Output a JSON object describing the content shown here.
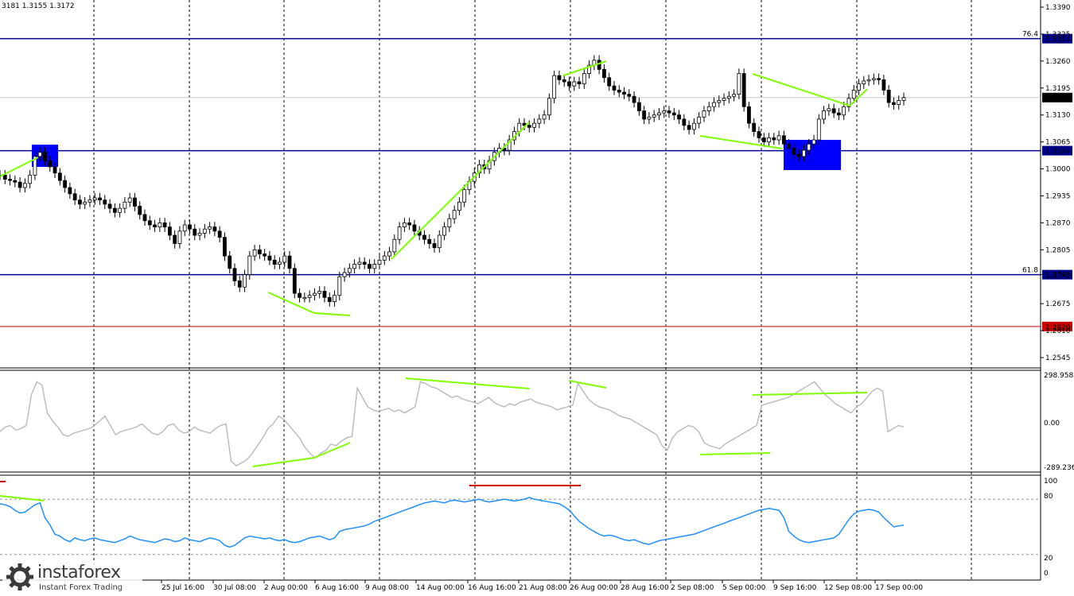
{
  "header": {
    "ohlc_text": "3181 1.3155 1.3172"
  },
  "price_axis": {
    "ticks": [
      "1.3390",
      "1.3325",
      "1.3260",
      "1.3195",
      "1.3130",
      "1.3065",
      "1.3000",
      "1.2935",
      "1.2870",
      "1.2805",
      "1.2745",
      "1.2675",
      "1.2610",
      "1.2545"
    ]
  },
  "time_axis": {
    "labels": [
      "25 Jul 16:00",
      "30 Jul 08:00",
      "2 Aug 00:00",
      "6 Aug 16:00",
      "9 Aug 08:00",
      "14 Aug 00:00",
      "16 Aug 16:00",
      "21 Aug 08:00",
      "26 Aug 00:00",
      "28 Aug 16:00",
      "2 Sep 08:00",
      "5 Sep 00:00",
      "9 Sep 16:00",
      "12 Sep 08:00",
      "17 Sep 00:00"
    ]
  },
  "levels": [
    {
      "fib_label": "76.4",
      "price_label": "1.3314",
      "color": "#00008b"
    },
    {
      "fib_label": "",
      "price_label": "1.3044",
      "color": "#00008b"
    },
    {
      "fib_label": "61.8",
      "price_label": "1.2745",
      "color": "#00008b"
    },
    {
      "fib_label": "",
      "price_label": "1.2620",
      "color": "#cc0000"
    }
  ],
  "current_price": "1.3172",
  "cci_panel": {
    "ticks": [
      "298.9583",
      "0.00",
      "-289.236"
    ]
  },
  "rsi_panel": {
    "ticks": [
      "100",
      "80",
      "20",
      "0"
    ]
  },
  "logo": {
    "name": "instaforex",
    "tagline": "Instant Forex Trading"
  },
  "colors": {
    "divergence": "#7fff00",
    "rsi_line": "#1e90ff",
    "cci_line": "#bdbdbd",
    "zone": "#0000ff",
    "level_blue": "#00008b",
    "level_red": "#cc0000"
  },
  "chart_data": [
    {
      "type": "candlestick",
      "series": [
        {
          "name": "",
          "values": [
            1.2985,
            1.2975,
            1.2972,
            1.2968,
            1.2955,
            1.2965,
            1.2985,
            1.303,
            1.304,
            1.302,
            1.3005,
            1.299,
            1.2972,
            1.2955,
            1.294,
            1.2925,
            1.2915,
            1.292,
            1.2925,
            1.293,
            1.2925,
            1.2915,
            1.2905,
            1.2895,
            1.2905,
            1.292,
            1.293,
            1.291,
            1.289,
            1.2875,
            1.2865,
            1.286,
            1.287,
            1.286,
            1.284,
            1.282,
            1.285,
            1.2865,
            1.2855,
            1.284,
            1.2845,
            1.2855,
            1.286,
            1.285,
            1.2835,
            1.279,
            1.276,
            1.273,
            1.2715,
            1.2745,
            1.279,
            1.2805,
            1.2795,
            1.279,
            1.278,
            1.277,
            1.2775,
            1.279,
            1.276,
            1.27,
            1.269,
            1.269,
            1.2695,
            1.27,
            1.2705,
            1.269,
            1.268,
            1.2695,
            1.274,
            1.275,
            1.276,
            1.277,
            1.2775,
            1.277,
            1.276,
            1.277,
            1.278,
            1.279,
            1.28,
            1.283,
            1.286,
            1.287,
            1.2865,
            1.285,
            1.284,
            1.283,
            1.282,
            1.281,
            1.284,
            1.286,
            1.288,
            1.29,
            1.292,
            1.295,
            1.297,
            1.299,
            1.301,
            1.3,
            1.302,
            1.304,
            1.305,
            1.3045,
            1.307,
            1.309,
            1.311,
            1.3105,
            1.31,
            1.311,
            1.312,
            1.313,
            1.317,
            1.3225,
            1.3215,
            1.321,
            1.32,
            1.321,
            1.3205,
            1.323,
            1.325,
            1.3262,
            1.324,
            1.322,
            1.32,
            1.319,
            1.3185,
            1.318,
            1.3175,
            1.316,
            1.314,
            1.312,
            1.3125,
            1.313,
            1.3135,
            1.314,
            1.3135,
            1.313,
            1.312,
            1.3105,
            1.3095,
            1.311,
            1.3125,
            1.314,
            1.315,
            1.316,
            1.3165,
            1.317,
            1.3175,
            1.318,
            1.323,
            1.315,
            1.311,
            1.309,
            1.3075,
            1.3065,
            1.3075,
            1.307,
            1.308,
            1.306,
            1.305,
            1.3035,
            1.303,
            1.3045,
            1.306,
            1.307,
            1.312,
            1.314,
            1.3145,
            1.3135,
            1.313,
            1.315,
            1.317,
            1.319,
            1.3205,
            1.3212,
            1.3215,
            1.3218,
            1.3215,
            1.319,
            1.316,
            1.3155,
            1.3165,
            1.3172
          ]
        }
      ],
      "xlabel": "",
      "ylabel": "",
      "ylim": [
        1.2545,
        1.339
      ]
    },
    {
      "type": "line",
      "series": [
        {
          "name": "",
          "values": [
            -60,
            -30,
            -20,
            -50,
            -40,
            -20,
            180,
            260,
            240,
            60,
            10,
            -30,
            -80,
            -90,
            -70,
            -60,
            -50,
            -40,
            -20,
            10,
            40,
            -20,
            -80,
            -60,
            -50,
            -40,
            -30,
            -10,
            -40,
            -70,
            -80,
            -60,
            -20,
            -10,
            -50,
            -70,
            -60,
            -30,
            -50,
            -60,
            -70,
            -40,
            -20,
            -10,
            -250,
            -280,
            -260,
            -240,
            -200,
            -150,
            -100,
            -40,
            -10,
            40,
            20,
            -20,
            -60,
            -100,
            -160,
            -200,
            -230,
            -200,
            -180,
            -140,
            -150,
            -120,
            -100,
            -90,
            220,
            160,
            100,
            80,
            70,
            80,
            90,
            70,
            80,
            60,
            80,
            100,
            260,
            250,
            230,
            220,
            200,
            180,
            160,
            170,
            150,
            140,
            130,
            120,
            140,
            160,
            130,
            110,
            100,
            120,
            110,
            130,
            140,
            150,
            130,
            120,
            110,
            100,
            80,
            90,
            100,
            110,
            250,
            200,
            150,
            120,
            100,
            90,
            80,
            60,
            40,
            30,
            20,
            0,
            -20,
            -40,
            -60,
            -80,
            -150,
            -180,
            -100,
            -60,
            -40,
            -20,
            -30,
            -60,
            -130,
            -150,
            -160,
            -170,
            -140,
            -120,
            -100,
            -80,
            -60,
            -40,
            -20,
            110,
            120,
            130,
            140,
            150,
            160,
            180,
            200,
            220,
            240,
            260,
            220,
            180,
            150,
            120,
            100,
            80,
            60,
            100,
            120,
            160,
            200,
            220,
            200,
            -60,
            -40,
            -20,
            -30
          ]
        }
      ],
      "ylim": [
        -289.236,
        298.9583
      ]
    },
    {
      "type": "line",
      "series": [
        {
          "name": "",
          "values": [
            75,
            74,
            72,
            68,
            65,
            66,
            70,
            74,
            76,
            60,
            52,
            42,
            40,
            36,
            34,
            38,
            36,
            35,
            37,
            38,
            36,
            35,
            34,
            33,
            35,
            37,
            40,
            38,
            36,
            35,
            34,
            33,
            35,
            37,
            36,
            34,
            35,
            38,
            36,
            35,
            34,
            36,
            38,
            37,
            35,
            30,
            28,
            30,
            34,
            38,
            40,
            39,
            38,
            37,
            38,
            36,
            35,
            36,
            34,
            33,
            34,
            36,
            38,
            39,
            40,
            38,
            36,
            38,
            45,
            47,
            48,
            49,
            50,
            51,
            53,
            56,
            58,
            60,
            62,
            64,
            66,
            68,
            70,
            72,
            74,
            76,
            77,
            78,
            77,
            76,
            78,
            79,
            78,
            77,
            78,
            79,
            80,
            78,
            77,
            78,
            79,
            80,
            79,
            78,
            79,
            80,
            82,
            80,
            79,
            78,
            77,
            76,
            75,
            72,
            68,
            62,
            56,
            52,
            48,
            45,
            42,
            40,
            41,
            40,
            38,
            36,
            35,
            36,
            34,
            32,
            31,
            33,
            35,
            36,
            37,
            38,
            39,
            40,
            41,
            42,
            44,
            46,
            48,
            50,
            52,
            54,
            56,
            58,
            60,
            62,
            64,
            66,
            68,
            69,
            70,
            69,
            68,
            60,
            45,
            40,
            36,
            34,
            33,
            34,
            35,
            36,
            37,
            38,
            42,
            50,
            58,
            64,
            67,
            68,
            69,
            68,
            66,
            60,
            55,
            50,
            51,
            52
          ]
        }
      ],
      "ylim": [
        0,
        100
      ],
      "levels": [
        80,
        20
      ]
    }
  ]
}
